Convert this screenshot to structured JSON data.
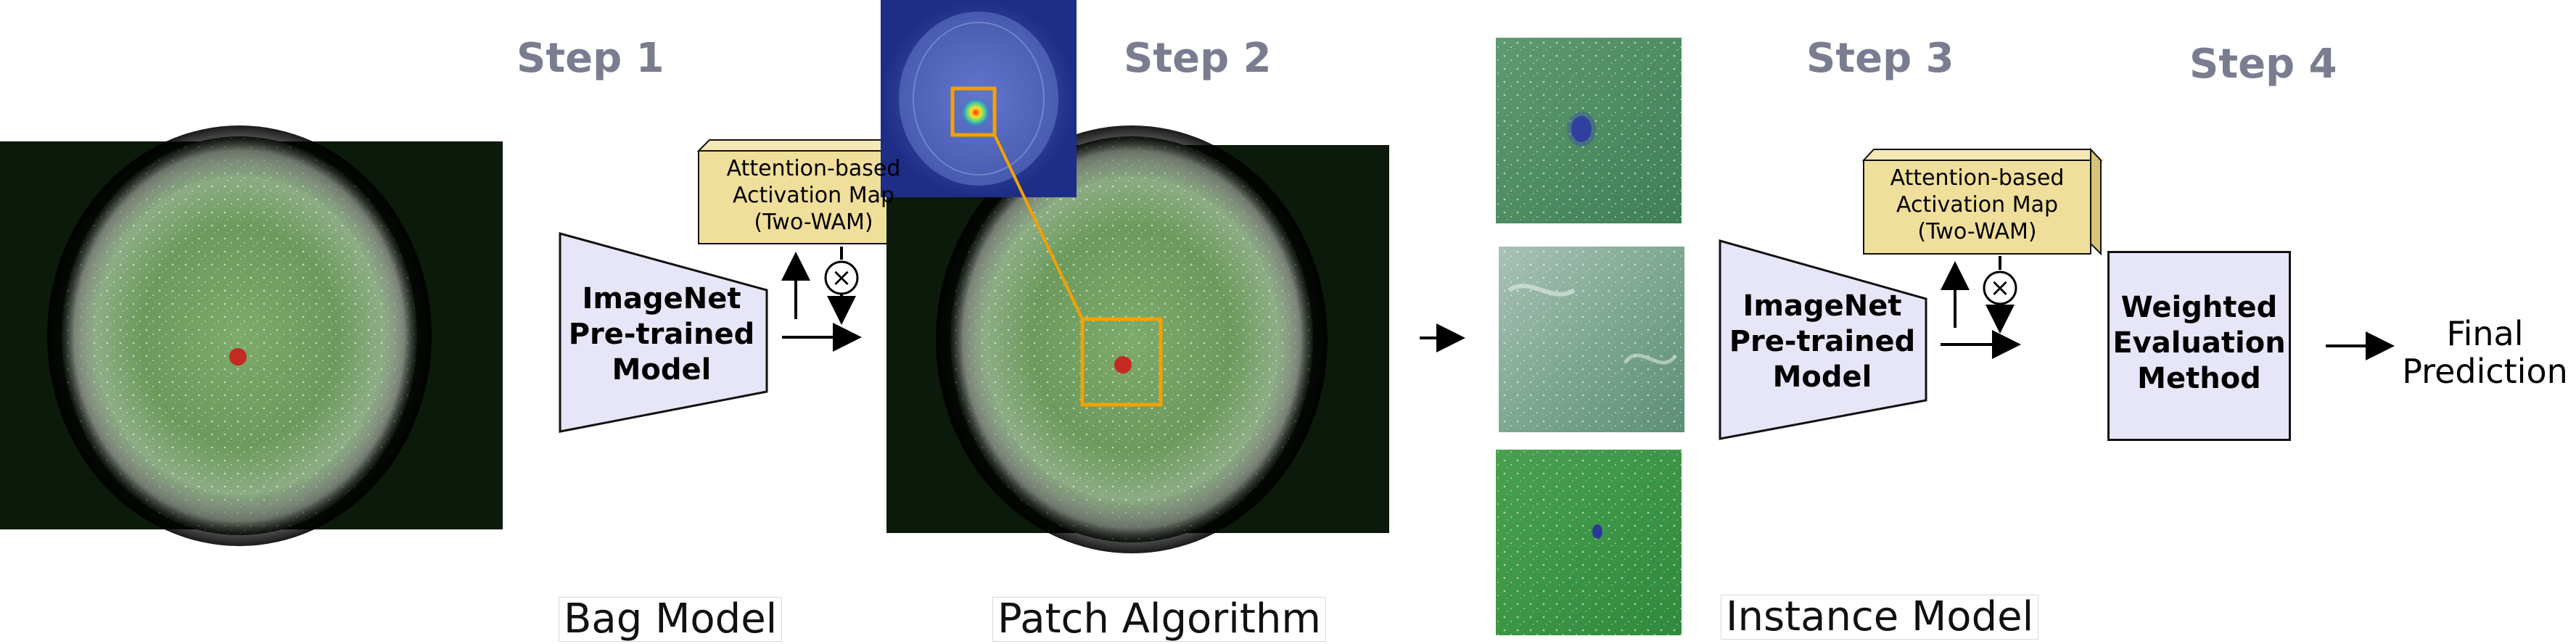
{
  "steps": {
    "step1": "Step 1",
    "step2": "Step 2",
    "step3": "Step 3",
    "step4": "Step 4"
  },
  "captions": {
    "bag_model": "Bag Model",
    "patch_algorithm": "Patch Algorithm",
    "instance_model": "Instance Model"
  },
  "model_block": {
    "line1": "ImageNet",
    "line2": "Pre-trained",
    "line3": "Model"
  },
  "attention_map": {
    "line1": "Attention-based",
    "line2": "Activation Map",
    "line3": "(Two-WAM)"
  },
  "weighted_evaluation": {
    "line1": "Weighted",
    "line2": "Evaluation",
    "line3": "Method"
  },
  "final_prediction": {
    "line1": "Final",
    "line2": "Prediction"
  },
  "symbols": {
    "multiply": "×"
  },
  "colors": {
    "step_text": "#7a7d8f",
    "model_fill": "#e6e6f8",
    "attention_fill": "#f0df9a",
    "highlight_orange": "#f4a100",
    "leaf_green": "#6c9a5c",
    "mite_red": "#c42a22"
  }
}
